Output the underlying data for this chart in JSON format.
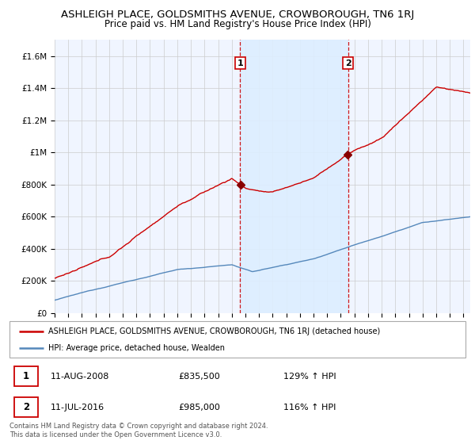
{
  "title": "ASHLEIGH PLACE, GOLDSMITHS AVENUE, CROWBOROUGH, TN6 1RJ",
  "subtitle": "Price paid vs. HM Land Registry's House Price Index (HPI)",
  "ylabel_ticks": [
    "£0",
    "£200K",
    "£400K",
    "£600K",
    "£800K",
    "£1M",
    "£1.2M",
    "£1.4M",
    "£1.6M"
  ],
  "ytick_values": [
    0,
    200000,
    400000,
    600000,
    800000,
    1000000,
    1200000,
    1400000,
    1600000
  ],
  "ylim": [
    0,
    1700000
  ],
  "xlim_start": 1995.0,
  "xlim_end": 2025.5,
  "sale1_date": 2008.61,
  "sale1_price": 835500,
  "sale1_label": "1",
  "sale2_date": 2016.53,
  "sale2_price": 985000,
  "sale2_label": "2",
  "legend_line1": "ASHLEIGH PLACE, GOLDSMITHS AVENUE, CROWBOROUGH, TN6 1RJ (detached house)",
  "legend_line2": "HPI: Average price, detached house, Wealden",
  "table_row1": [
    "1",
    "11-AUG-2008",
    "£835,500",
    "129% ↑ HPI"
  ],
  "table_row2": [
    "2",
    "11-JUL-2016",
    "£985,000",
    "116% ↑ HPI"
  ],
  "footer": "Contains HM Land Registry data © Crown copyright and database right 2024.\nThis data is licensed under the Open Government Licence v3.0.",
  "red_color": "#cc0000",
  "blue_color": "#5588bb",
  "shade_color": "#ddeeff",
  "bg_color": "#f0f5ff",
  "grid_color": "#cccccc"
}
